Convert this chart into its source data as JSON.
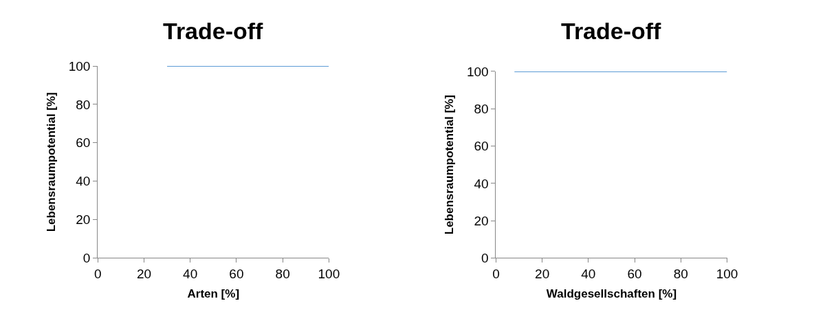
{
  "chart_data": [
    {
      "type": "line",
      "title": "Trade-off",
      "xlabel": "Arten [%]",
      "ylabel": "Lebensraumpotential [%]",
      "x": [
        30,
        100
      ],
      "series": [
        {
          "color": "#5b9bd5",
          "values": [
            100,
            100
          ]
        }
      ],
      "xlim": [
        0,
        100
      ],
      "xticks": [
        0,
        20,
        40,
        60,
        80,
        100
      ],
      "ylim": [
        0,
        100
      ],
      "yticks": [
        0,
        20,
        40,
        60,
        80,
        100
      ],
      "line_style": "solid"
    },
    {
      "type": "line",
      "title": "Trade-off",
      "xlabel": "Waldgesellschaften [%]",
      "ylabel": "Lebensraumpotential [%]",
      "x": [
        8,
        100
      ],
      "series": [
        {
          "color": "#5b9bd5",
          "values": [
            100,
            100
          ]
        }
      ],
      "xlim": [
        0,
        100
      ],
      "xticks": [
        0,
        20,
        40,
        60,
        80,
        100
      ],
      "ylim": [
        0,
        100
      ],
      "yticks": [
        0,
        20,
        40,
        60,
        80,
        100
      ],
      "line_style": "solid"
    }
  ]
}
